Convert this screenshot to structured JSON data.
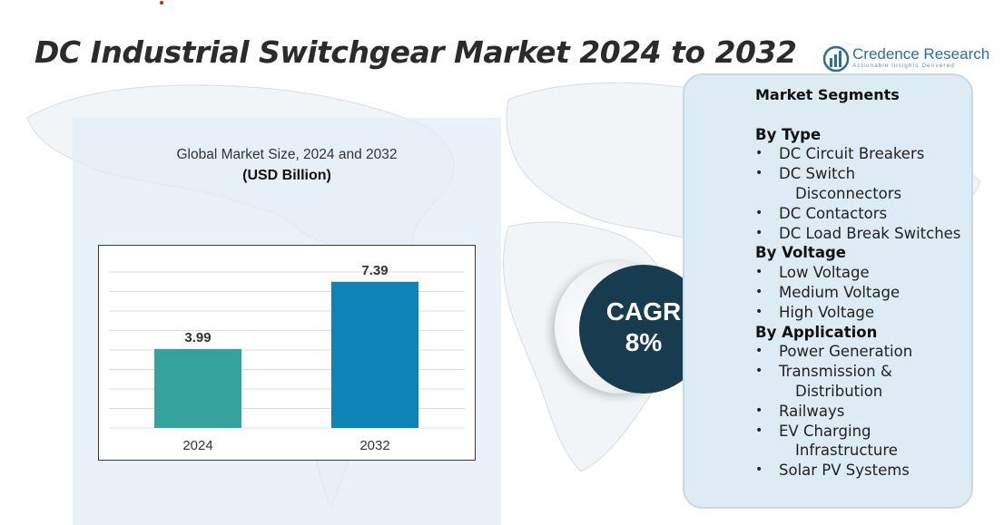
{
  "title": "DC Industrial Switchgear Market 2024 to 2032",
  "logo": {
    "name": "Credence Research",
    "tagline": "Actionable Insights Delivered"
  },
  "chart_data": {
    "type": "bar",
    "title": "Global Market Size, 2024 and 2032",
    "ylabel": "(USD Billion)",
    "xlabel": "",
    "categories": [
      "2024",
      "2032"
    ],
    "values": [
      3.99,
      7.39
    ],
    "value_labels": [
      "3.99",
      "7.39"
    ],
    "bar_colors": [
      "#35a29d",
      "#0d84b7"
    ],
    "ylim": [
      0,
      8.8
    ],
    "grid": true
  },
  "cagr": {
    "label": "CAGR",
    "value": "8%"
  },
  "segments": {
    "title": "Market Segments",
    "groups": [
      {
        "heading": "By Type",
        "items": [
          "DC Circuit Breakers",
          "DC Switch Disconnectors",
          "DC Contactors",
          "DC Load Break Switches"
        ]
      },
      {
        "heading": "By Voltage",
        "items": [
          "Low Voltage",
          "Medium Voltage",
          "High Voltage"
        ]
      },
      {
        "heading": "By Application",
        "items": [
          "Power Generation",
          "Transmission & Distribution",
          "Railways",
          "EV Charging Infrastructure",
          "Solar PV Systems"
        ]
      }
    ]
  }
}
